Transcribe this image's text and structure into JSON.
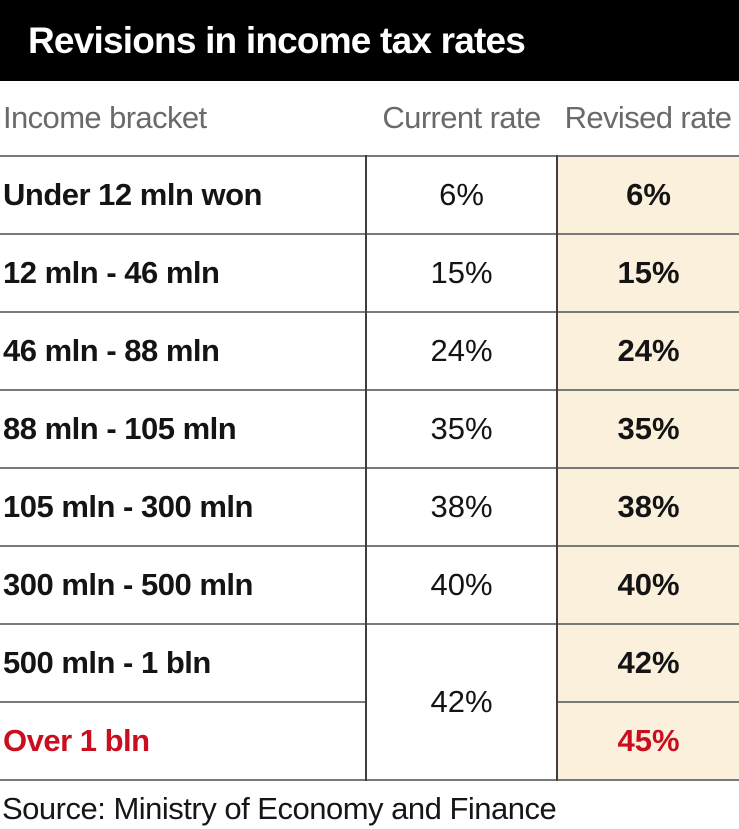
{
  "title": "Revisions in income tax rates",
  "columns": {
    "bracket": "Income bracket",
    "current": "Current rate",
    "revised": "Revised rate"
  },
  "table": {
    "rows": [
      {
        "bracket": "Under 12 mln won",
        "current": "6%",
        "revised": "6%"
      },
      {
        "bracket": "12 mln - 46 mln",
        "current": "15%",
        "revised": "15%"
      },
      {
        "bracket": "46 mln - 88 mln",
        "current": "24%",
        "revised": "24%"
      },
      {
        "bracket": "88 mln - 105 mln",
        "current": "35%",
        "revised": "35%"
      },
      {
        "bracket": "105 mln - 300 mln",
        "current": "38%",
        "revised": "38%"
      },
      {
        "bracket": "300 mln - 500 mln",
        "current": "40%",
        "revised": "40%"
      },
      {
        "bracket": "500 mln - 1 bln",
        "current": "42%",
        "revised": "42%",
        "current_rowspan": 2
      },
      {
        "bracket": "Over 1 bln",
        "revised": "45%",
        "highlight": "red"
      }
    ]
  },
  "source": "Source: Ministry of Economy and Finance",
  "colors": {
    "banner_bg": "#000000",
    "title_text": "#ffffff",
    "header_text": "#6a6a6a",
    "grid_horizontal": "#7a7a7a",
    "grid_vertical": "#3f3f3f",
    "revised_column_bg": "#faf0dc",
    "accent_red": "#cb0e1f"
  },
  "chart_data": {
    "type": "table",
    "title": "Revisions in income tax rates",
    "columns": [
      "Income bracket",
      "Current rate",
      "Revised rate"
    ],
    "rows": [
      [
        "Under 12 mln won",
        "6%",
        "6%"
      ],
      [
        "12 mln - 46 mln",
        "15%",
        "15%"
      ],
      [
        "46 mln - 88 mln",
        "24%",
        "24%"
      ],
      [
        "88 mln - 105 mln",
        "35%",
        "35%"
      ],
      [
        "105 mln - 300 mln",
        "38%",
        "38%"
      ],
      [
        "300 mln - 500 mln",
        "40%",
        "40%"
      ],
      [
        "500 mln - 1 bln",
        "42%",
        "42%"
      ],
      [
        "Over 1 bln",
        "42%",
        "45%"
      ]
    ],
    "layout_notes": "Current rate cell '42%' is merged across the last two brackets; 'Over 1 bln' label and its revised '45%' are red; revised-rate column has cream background",
    "source": "Source: Ministry of Economy and Finance"
  }
}
